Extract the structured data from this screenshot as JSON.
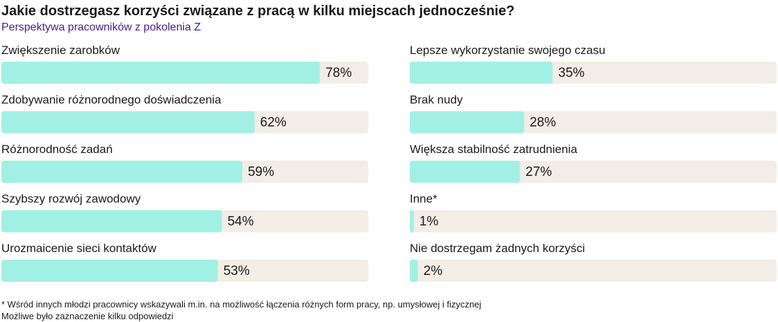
{
  "chart_data": {
    "type": "bar",
    "title": "Jakie dostrzegasz korzyści związane z pracą w kilku miejscach jednocześnie?",
    "subtitle": "Perspektywa pracowników z pokolenia Z",
    "categories": [
      "Zwiększenie zarobków",
      "Zdobywanie różnorodnego doświadczenia",
      "Różnorodność zadań",
      "Szybszy rozwój zawodowy",
      "Urozmaicenie sieci kontaktów",
      "Lepsze wykorzystanie swojego czasu",
      "Brak nudy",
      "Większa stabilność zatrudnienia",
      "Inne*",
      "Nie dostrzegam żadnych korzyści"
    ],
    "values": [
      78,
      62,
      59,
      54,
      53,
      35,
      28,
      27,
      1,
      2
    ],
    "value_labels": [
      "78%",
      "62%",
      "59%",
      "54%",
      "53%",
      "35%",
      "28%",
      "27%",
      "1%",
      "2%"
    ],
    "color": "#a2f0e4",
    "notes": [
      "* Wśród innych młodzi pracownicy wskazywali m.in. na możliwość łączenia różnych form pracy, np. umysłowej i fizycznej",
      "Możliwe było zaznaczenie kilku odpowiedzi"
    ]
  }
}
